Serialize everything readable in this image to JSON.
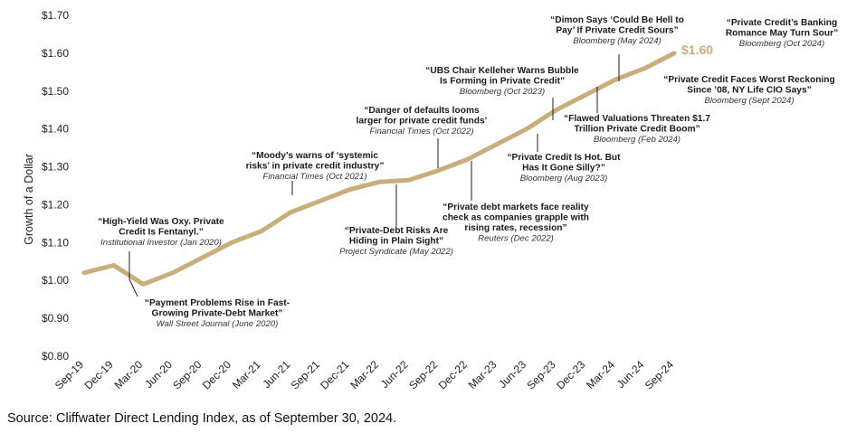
{
  "chart_data": {
    "type": "line",
    "ylabel": "Growth of a Dollar",
    "ylim": [
      0.8,
      1.7
    ],
    "y_ticks": [
      "$0.80",
      "$0.90",
      "$1.00",
      "$1.10",
      "$1.20",
      "$1.30",
      "$1.40",
      "$1.50",
      "$1.60",
      "$1.70"
    ],
    "y_tick_values": [
      0.8,
      0.9,
      1.0,
      1.1,
      1.2,
      1.3,
      1.4,
      1.5,
      1.6,
      1.7
    ],
    "x_ticks": [
      "Sep-19",
      "Dec-19",
      "Mar-20",
      "Jun-20",
      "Sep-20",
      "Dec-20",
      "Mar-21",
      "Jun-21",
      "Sep-21",
      "Dec-21",
      "Mar-22",
      "Jun-22",
      "Sep-22",
      "Dec-22",
      "Mar-23",
      "Jun-23",
      "Sep-23",
      "Dec-23",
      "Mar-24",
      "Jun-24",
      "Sep-24"
    ],
    "series": [
      {
        "color": "#c9ad7c",
        "values": [
          1.02,
          1.04,
          0.99,
          1.02,
          1.06,
          1.1,
          1.13,
          1.18,
          1.21,
          1.24,
          1.26,
          1.265,
          1.29,
          1.32,
          1.36,
          1.4,
          1.45,
          1.49,
          1.53,
          1.56,
          1.6
        ]
      }
    ],
    "end_label": "$1.60",
    "grid": false,
    "annotations": [
      {
        "lines": [
          "“High-Yield Was Oxy. Private",
          "Credit Is Fentanyl.”"
        ],
        "source": "Institutional Investor (Jan 2020)"
      },
      {
        "lines": [
          "“Payment Problems Rise in Fast-",
          "Growing Private-Debt Market”"
        ],
        "source": "Wall Street Journal (June 2020)"
      },
      {
        "lines": [
          "“Moody’s warns of ‘systemic",
          "risks’ in private credit industry”"
        ],
        "source": "Financial Times (Oct 2021)"
      },
      {
        "lines": [
          "“Private-Debt Risks Are",
          "Hiding in Plain Sight”"
        ],
        "source": "Project Syndicate (May 2022)"
      },
      {
        "lines": [
          "“Danger of defaults looms",
          "larger for private credit funds’"
        ],
        "source": "Financial Times (Oct 2022)"
      },
      {
        "lines": [
          "“Private debt markets face reality",
          "check as companies grapple with",
          "rising rates, recession”"
        ],
        "source": "Reuters (Dec 2022)"
      },
      {
        "lines": [
          "“UBS Chair Kelleher Warns Bubble",
          "Is Forming in Private Credit”"
        ],
        "source": "Bloomberg (Oct 2023)"
      },
      {
        "lines": [
          "“Private Credit Is Hot. But",
          "Has It Gone Silly?”"
        ],
        "source": "Bloomberg (Aug 2023)"
      },
      {
        "lines": [
          "“Dimon Says ‘Could Be Hell to",
          "Pay’ If Private Credit Sours”"
        ],
        "source": "Bloomberg (May 2024)"
      },
      {
        "lines": [
          "“Flawed Valuations Threaten $1.7",
          "Trillion Private Credit Boom”"
        ],
        "source": "Bloomberg (Feb 2024)"
      },
      {
        "lines": [
          "“Private Credit’s Banking",
          "Romance May Turn Sour”"
        ],
        "source": "Bloomberg (Oct 2024)"
      },
      {
        "lines": [
          "“Private Credit Faces Worst Reckoning",
          "Since ’08, NY Life CIO Says”"
        ],
        "source": "Bloomberg (Sept 2024)"
      }
    ]
  },
  "source_note": "Source: Cliffwater Direct Lending Index, as of September 30, 2024."
}
